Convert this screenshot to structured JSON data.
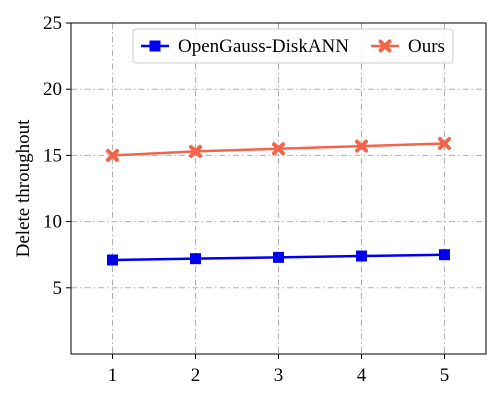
{
  "chart_data": {
    "type": "line",
    "x": [
      1,
      2,
      3,
      4,
      5
    ],
    "xlim": [
      0.5,
      5.5
    ],
    "ylim": [
      0,
      25
    ],
    "xticks": [
      1,
      2,
      3,
      4,
      5
    ],
    "yticks": [
      5,
      10,
      15,
      20,
      25
    ],
    "xlabel": "",
    "ylabel": "Delete throughout",
    "grid": true,
    "legend_position": "top-right",
    "series": [
      {
        "name": "OpenGauss-DiskANN",
        "color": "#0000ee",
        "marker": "square",
        "values": [
          7.1,
          7.2,
          7.3,
          7.4,
          7.5
        ]
      },
      {
        "name": "Ours",
        "color": "#f4644a",
        "marker": "x",
        "values": [
          15.0,
          15.3,
          15.5,
          15.7,
          15.9
        ]
      }
    ]
  }
}
